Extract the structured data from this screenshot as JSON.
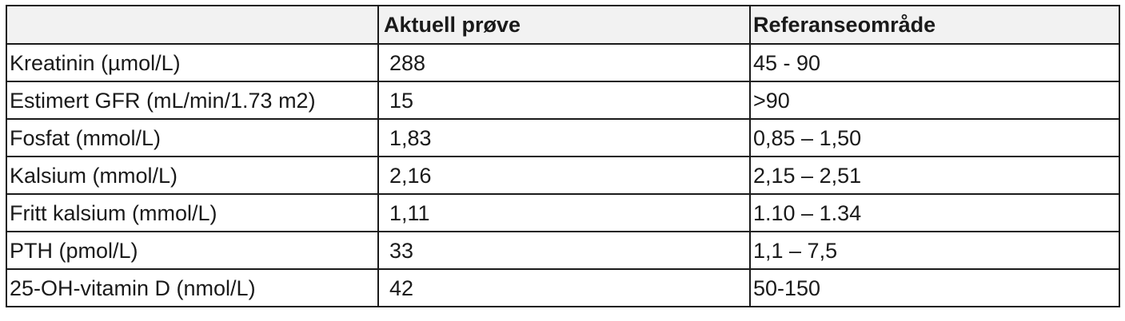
{
  "table": {
    "headers": [
      "",
      "Aktuell prøve",
      "Referanseområde"
    ],
    "rows": [
      {
        "label": "Kreatinin (µmol/L)",
        "value": "288",
        "reference": "45 - 90"
      },
      {
        "label": "Estimert GFR (mL/min/1.73 m2)",
        "value": "15",
        "reference": ">90"
      },
      {
        "label": "Fosfat (mmol/L)",
        "value": "1,83",
        "reference": "0,85 – 1,50"
      },
      {
        "label": "Kalsium (mmol/L)",
        "value": "2,16",
        "reference": "2,15 – 2,51"
      },
      {
        "label": "Fritt kalsium (mmol/L)",
        "value": "1,11",
        "reference": "1.10 – 1.34"
      },
      {
        "label": "PTH (pmol/L)",
        "value": "33",
        "reference": "1,1 – 7,5"
      },
      {
        "label": "25-OH-vitamin D (nmol/L)",
        "value": "42",
        "reference": "50-150"
      }
    ]
  }
}
